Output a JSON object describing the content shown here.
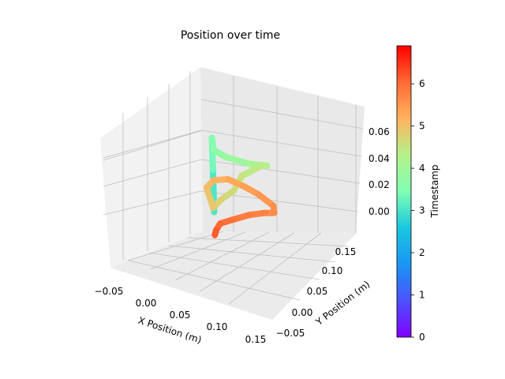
{
  "chart_data": {
    "type": "line",
    "title": "Position over time",
    "xlabel": "X Position (m)",
    "ylabel": "Y Position (m)",
    "zlabel": "",
    "colorbar_label": "Timestamp",
    "colormap": "rainbow",
    "x_ticks": [
      "−0.05",
      "0.00",
      "0.05",
      "0.10",
      "0.15"
    ],
    "y_ticks": [
      "−0.05",
      "0.00",
      "0.05",
      "0.10",
      "0.15"
    ],
    "z_ticks": [
      "0.00",
      "0.02",
      "0.04",
      "0.06"
    ],
    "colorbar_ticks": [
      "0",
      "1",
      "2",
      "3",
      "4",
      "5",
      "6"
    ],
    "xlim": [
      -0.06,
      0.16
    ],
    "ylim": [
      -0.06,
      0.17
    ],
    "zlim": [
      -0.01,
      0.07
    ],
    "clim": [
      0,
      6.9
    ],
    "grid": true,
    "series": [
      {
        "x": [
          0.0,
          0.0,
          0.0,
          0.005,
          0.03,
          0.08,
          0.135,
          0.14,
          0.1,
          0.07,
          0.04,
          0.02,
          0.015,
          0.04,
          0.075,
          0.11,
          0.14,
          0.16,
          0.155,
          0.13,
          0.09,
          0.05,
          0.02,
          0.005,
          0.0
        ],
        "y": [
          0.0,
          0.0,
          0.0,
          0.005,
          0.02,
          0.05,
          0.1,
          0.12,
          0.1,
          0.07,
          0.05,
          0.035,
          0.04,
          0.065,
          0.09,
          0.115,
          0.13,
          0.13,
          0.12,
          0.1,
          0.07,
          0.04,
          0.02,
          0.005,
          0.0
        ],
        "z": [
          0.012,
          0.045,
          0.07,
          0.06,
          0.054,
          0.048,
          0.04,
          0.034,
          0.025,
          0.018,
          0.012,
          0.007,
          0.02,
          0.022,
          0.021,
          0.014,
          0.008,
          0.003,
          0.0,
          0.002,
          0.003,
          0.002,
          0.0,
          -0.003,
          -0.006
        ],
        "timestamp": [
          2.9,
          3.2,
          3.5,
          3.6,
          3.8,
          4.0,
          4.2,
          4.35,
          4.5,
          4.6,
          4.7,
          4.8,
          5.0,
          5.1,
          5.25,
          5.35,
          5.45,
          5.55,
          5.6,
          5.7,
          5.8,
          5.9,
          6.0,
          6.1,
          6.2
        ]
      }
    ]
  }
}
